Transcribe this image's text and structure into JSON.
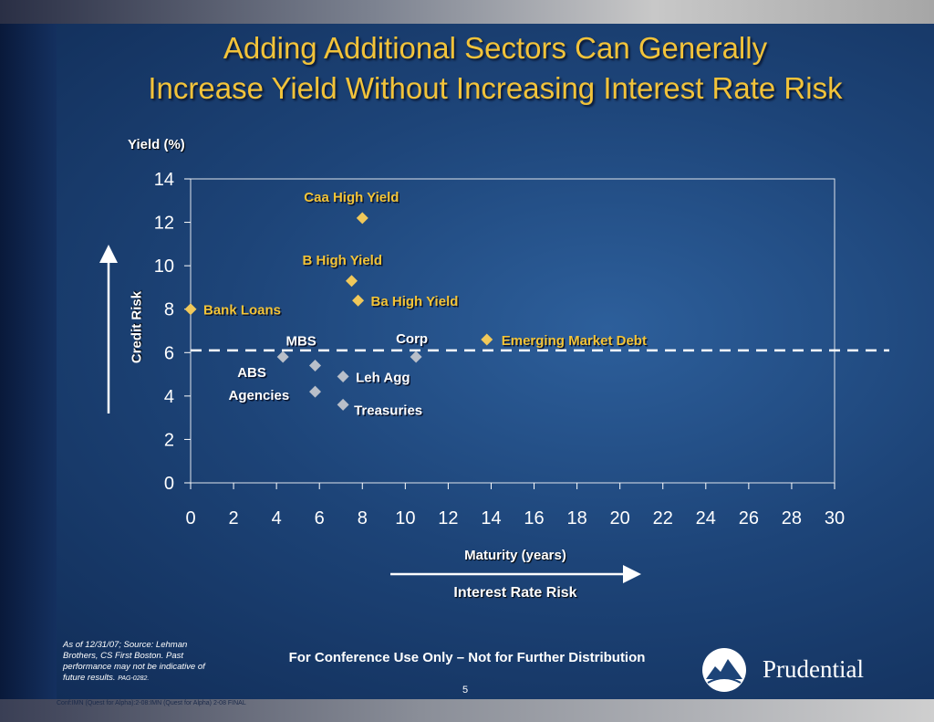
{
  "title_line1": "Adding Additional Sectors Can Generally",
  "title_line2": "Increase Yield Without Increasing Interest Rate Risk",
  "credit_risk_label": "Credit Risk",
  "interest_rate_risk_label": "Interest Rate Risk",
  "footnote": "As of 12/31/07; Source: Lehman Brothers, CS First Boston. Past performance may not be indicative of future results.",
  "footnote_code": "PAG-0282.",
  "conference_note": "For Conference Use Only – Not for Further Distribution",
  "page_number": "5",
  "file_name": "Conf:IMN (Quest for Alpha):2-08:IMN (Quest for Alpha) 2-08 FINAL",
  "logo_text": "Prudential",
  "colors": {
    "title": "#f2c33a",
    "gold": "#f0c85a",
    "gray": "#b9bfc9",
    "text_gold": "#f3c437"
  },
  "chart_data": {
    "type": "scatter",
    "xlabel": "Maturity (years)",
    "ylabel": "Yield (%)",
    "xlim": [
      0,
      30
    ],
    "ylim": [
      0,
      14
    ],
    "x_ticks": [
      "0",
      "2",
      "4",
      "6",
      "8",
      "10",
      "12",
      "14",
      "16",
      "18",
      "20",
      "22",
      "24",
      "26",
      "28",
      "30"
    ],
    "y_ticks": [
      "0",
      "2",
      "4",
      "6",
      "8",
      "10",
      "12",
      "14"
    ],
    "reference_line_y": 6.1,
    "grid": false,
    "points": [
      {
        "label": "Caa High Yield",
        "x": 8.0,
        "y": 12.2,
        "group": "gold"
      },
      {
        "label": "B High Yield",
        "x": 7.5,
        "y": 9.3,
        "group": "gold"
      },
      {
        "label": "Ba High Yield",
        "x": 7.8,
        "y": 8.4,
        "group": "gold"
      },
      {
        "label": "Bank Loans",
        "x": 0.0,
        "y": 8.0,
        "group": "gold"
      },
      {
        "label": "Emerging Market Debt",
        "x": 13.8,
        "y": 6.6,
        "group": "gold"
      },
      {
        "label": "MBS",
        "x": 5.8,
        "y": 5.4,
        "group": "gray"
      },
      {
        "label": "ABS",
        "x": 4.3,
        "y": 5.8,
        "group": "gray"
      },
      {
        "label": "Corp",
        "x": 10.5,
        "y": 5.8,
        "group": "gray"
      },
      {
        "label": "Leh Agg",
        "x": 7.1,
        "y": 4.9,
        "group": "gray"
      },
      {
        "label": "Agencies",
        "x": 5.8,
        "y": 4.2,
        "group": "gray"
      },
      {
        "label": "Treasuries",
        "x": 7.1,
        "y": 3.6,
        "group": "gray"
      }
    ]
  }
}
